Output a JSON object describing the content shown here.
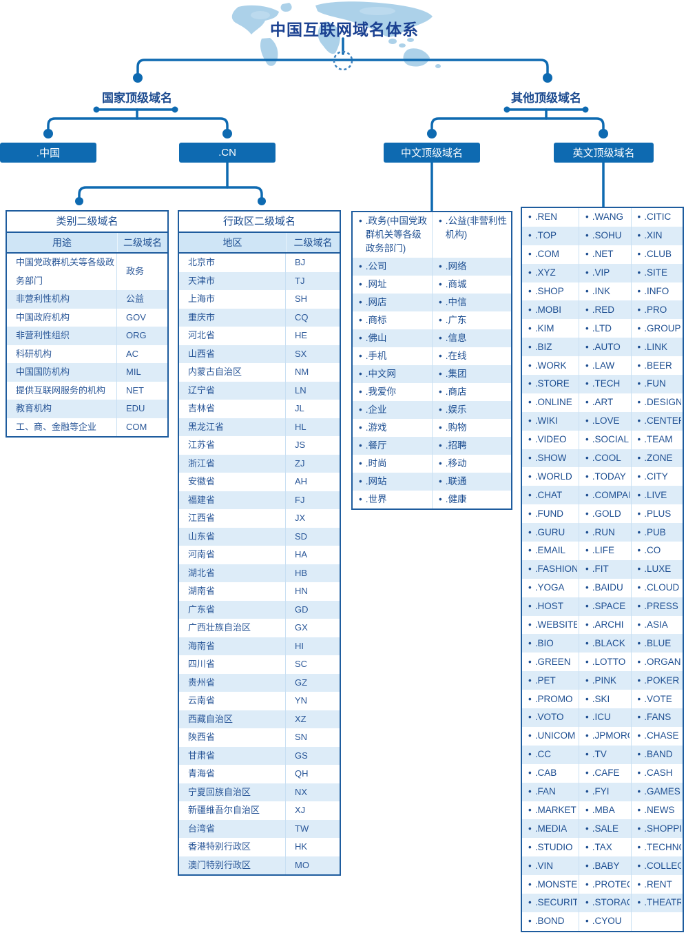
{
  "title": "中国互联网域名体系",
  "tree": {
    "left_branch_label": "国家顶级域名",
    "right_branch_label": "其他顶级域名",
    "nodes": {
      "china": ".中国",
      "cn": ".CN",
      "chinese_tld": "中文顶级域名",
      "english_tld": "英文顶级域名"
    }
  },
  "category_table": {
    "title": "类别二级域名",
    "headers": [
      "用途",
      "二级域名"
    ],
    "rows": [
      [
        "中国党政群机关等各级政务部门",
        "政务"
      ],
      [
        "非营利性机构",
        "公益"
      ],
      [
        "中国政府机构",
        "GOV"
      ],
      [
        "非营利性组织",
        "ORG"
      ],
      [
        "科研机构",
        "AC"
      ],
      [
        "中国国防机构",
        "MIL"
      ],
      [
        "提供互联网服务的机构",
        "NET"
      ],
      [
        "教育机构",
        "EDU"
      ],
      [
        "工、商、金融等企业",
        "COM"
      ]
    ]
  },
  "region_table": {
    "title": "行政区二级域名",
    "headers": [
      "地区",
      "二级域名"
    ],
    "rows": [
      [
        "北京市",
        "BJ"
      ],
      [
        "天津市",
        "TJ"
      ],
      [
        "上海市",
        "SH"
      ],
      [
        "重庆市",
        "CQ"
      ],
      [
        "河北省",
        "HE"
      ],
      [
        "山西省",
        "SX"
      ],
      [
        "内蒙古自治区",
        "NM"
      ],
      [
        "辽宁省",
        "LN"
      ],
      [
        "吉林省",
        "JL"
      ],
      [
        "黑龙江省",
        "HL"
      ],
      [
        "江苏省",
        "JS"
      ],
      [
        "浙江省",
        "ZJ"
      ],
      [
        "安徽省",
        "AH"
      ],
      [
        "福建省",
        "FJ"
      ],
      [
        "江西省",
        "JX"
      ],
      [
        "山东省",
        "SD"
      ],
      [
        "河南省",
        "HA"
      ],
      [
        "湖北省",
        "HB"
      ],
      [
        "湖南省",
        "HN"
      ],
      [
        "广东省",
        "GD"
      ],
      [
        "广西壮族自治区",
        "GX"
      ],
      [
        "海南省",
        "HI"
      ],
      [
        "四川省",
        "SC"
      ],
      [
        "贵州省",
        "GZ"
      ],
      [
        "云南省",
        "YN"
      ],
      [
        "西藏自治区",
        "XZ"
      ],
      [
        "陕西省",
        "SN"
      ],
      [
        "甘肃省",
        "GS"
      ],
      [
        "青海省",
        "QH"
      ],
      [
        "宁夏回族自治区",
        "NX"
      ],
      [
        "新疆维吾尔自治区",
        "XJ"
      ],
      [
        "台湾省",
        "TW"
      ],
      [
        "香港特别行政区",
        "HK"
      ],
      [
        "澳门特别行政区",
        "MO"
      ]
    ]
  },
  "chinese_tlds": {
    "rows": [
      [
        ".政务(中国党政群机关等各级政务部门)",
        ".公益(非营利性机构)"
      ],
      [
        ".公司",
        ".网络"
      ],
      [
        ".网址",
        ".商城"
      ],
      [
        ".网店",
        ".中信"
      ],
      [
        ".商标",
        ".广东"
      ],
      [
        ".佛山",
        ".信息"
      ],
      [
        ".手机",
        ".在线"
      ],
      [
        ".中文网",
        ".集团"
      ],
      [
        ".我爱你",
        ".商店"
      ],
      [
        ".企业",
        ".娱乐"
      ],
      [
        ".游戏",
        ".购物"
      ],
      [
        ".餐厅",
        ".招聘"
      ],
      [
        ".时尚",
        ".移动"
      ],
      [
        ".网站",
        ".联通"
      ],
      [
        ".世界",
        ".健康"
      ]
    ]
  },
  "english_tlds": {
    "rows": [
      [
        ".REN",
        ".WANG",
        ".CITIC"
      ],
      [
        ".TOP",
        ".SOHU",
        ".XIN"
      ],
      [
        ".COM",
        ".NET",
        ".CLUB"
      ],
      [
        ".XYZ",
        ".VIP",
        ".SITE"
      ],
      [
        ".SHOP",
        ".INK",
        ".INFO"
      ],
      [
        ".MOBI",
        ".RED",
        ".PRO"
      ],
      [
        ".KIM",
        ".LTD",
        ".GROUP"
      ],
      [
        ".BIZ",
        ".AUTO",
        ".LINK"
      ],
      [
        ".WORK",
        ".LAW",
        ".BEER"
      ],
      [
        ".STORE",
        ".TECH",
        ".FUN"
      ],
      [
        ".ONLINE",
        ".ART",
        ".DESIGN"
      ],
      [
        ".WIKI",
        ".LOVE",
        ".CENTER"
      ],
      [
        ".VIDEO",
        ".SOCIAL",
        ".TEAM"
      ],
      [
        ".SHOW",
        ".COOL",
        ".ZONE"
      ],
      [
        ".WORLD",
        ".TODAY",
        ".CITY"
      ],
      [
        ".CHAT",
        ".COMPANY",
        ".LIVE"
      ],
      [
        ".FUND",
        ".GOLD",
        ".PLUS"
      ],
      [
        ".GURU",
        ".RUN",
        ".PUB"
      ],
      [
        ".EMAIL",
        ".LIFE",
        ".CO"
      ],
      [
        ".FASHION",
        ".FIT",
        ".LUXE"
      ],
      [
        ".YOGA",
        ".BAIDU",
        ".CLOUD"
      ],
      [
        ".HOST",
        ".SPACE",
        ".PRESS"
      ],
      [
        ".WEBSITE",
        ".ARCHI",
        ".ASIA"
      ],
      [
        ".BIO",
        ".BLACK",
        ".BLUE"
      ],
      [
        ".GREEN",
        ".LOTTO",
        ".ORGANIC"
      ],
      [
        ".PET",
        ".PINK",
        ".POKER"
      ],
      [
        ".PROMO",
        ".SKI",
        ".VOTE"
      ],
      [
        ".VOTO",
        ".ICU",
        ".FANS"
      ],
      [
        ".UNICOM",
        ".JPMORGAN",
        ".CHASE"
      ],
      [
        ".CC",
        ".TV",
        ".BAND"
      ],
      [
        ".CAB",
        ".CAFE",
        ".CASH"
      ],
      [
        ".FAN",
        ".FYI",
        ".GAMES"
      ],
      [
        ".MARKET",
        ".MBA",
        ".NEWS"
      ],
      [
        ".MEDIA",
        ".SALE",
        ".SHOPPING"
      ],
      [
        ".STUDIO",
        ".TAX",
        ".TECHNOLOGY"
      ],
      [
        ".VIN",
        ".BABY",
        ".COLLEGE"
      ],
      [
        ".MONSTER",
        ".PROTECTION",
        ".RENT"
      ],
      [
        ".SECURITY",
        ".STORAGE",
        ".THEATRE"
      ],
      [
        ".BOND",
        ".CYOU",
        ""
      ]
    ]
  },
  "colors": {
    "primary_blue": "#0e6ab1",
    "border_blue": "#1e5c9e",
    "text_navy": "#1d4e91",
    "stripe_light": "#ddecf8",
    "header_bg": "#cfe5f6",
    "map_blue": "#9ec9e6"
  }
}
